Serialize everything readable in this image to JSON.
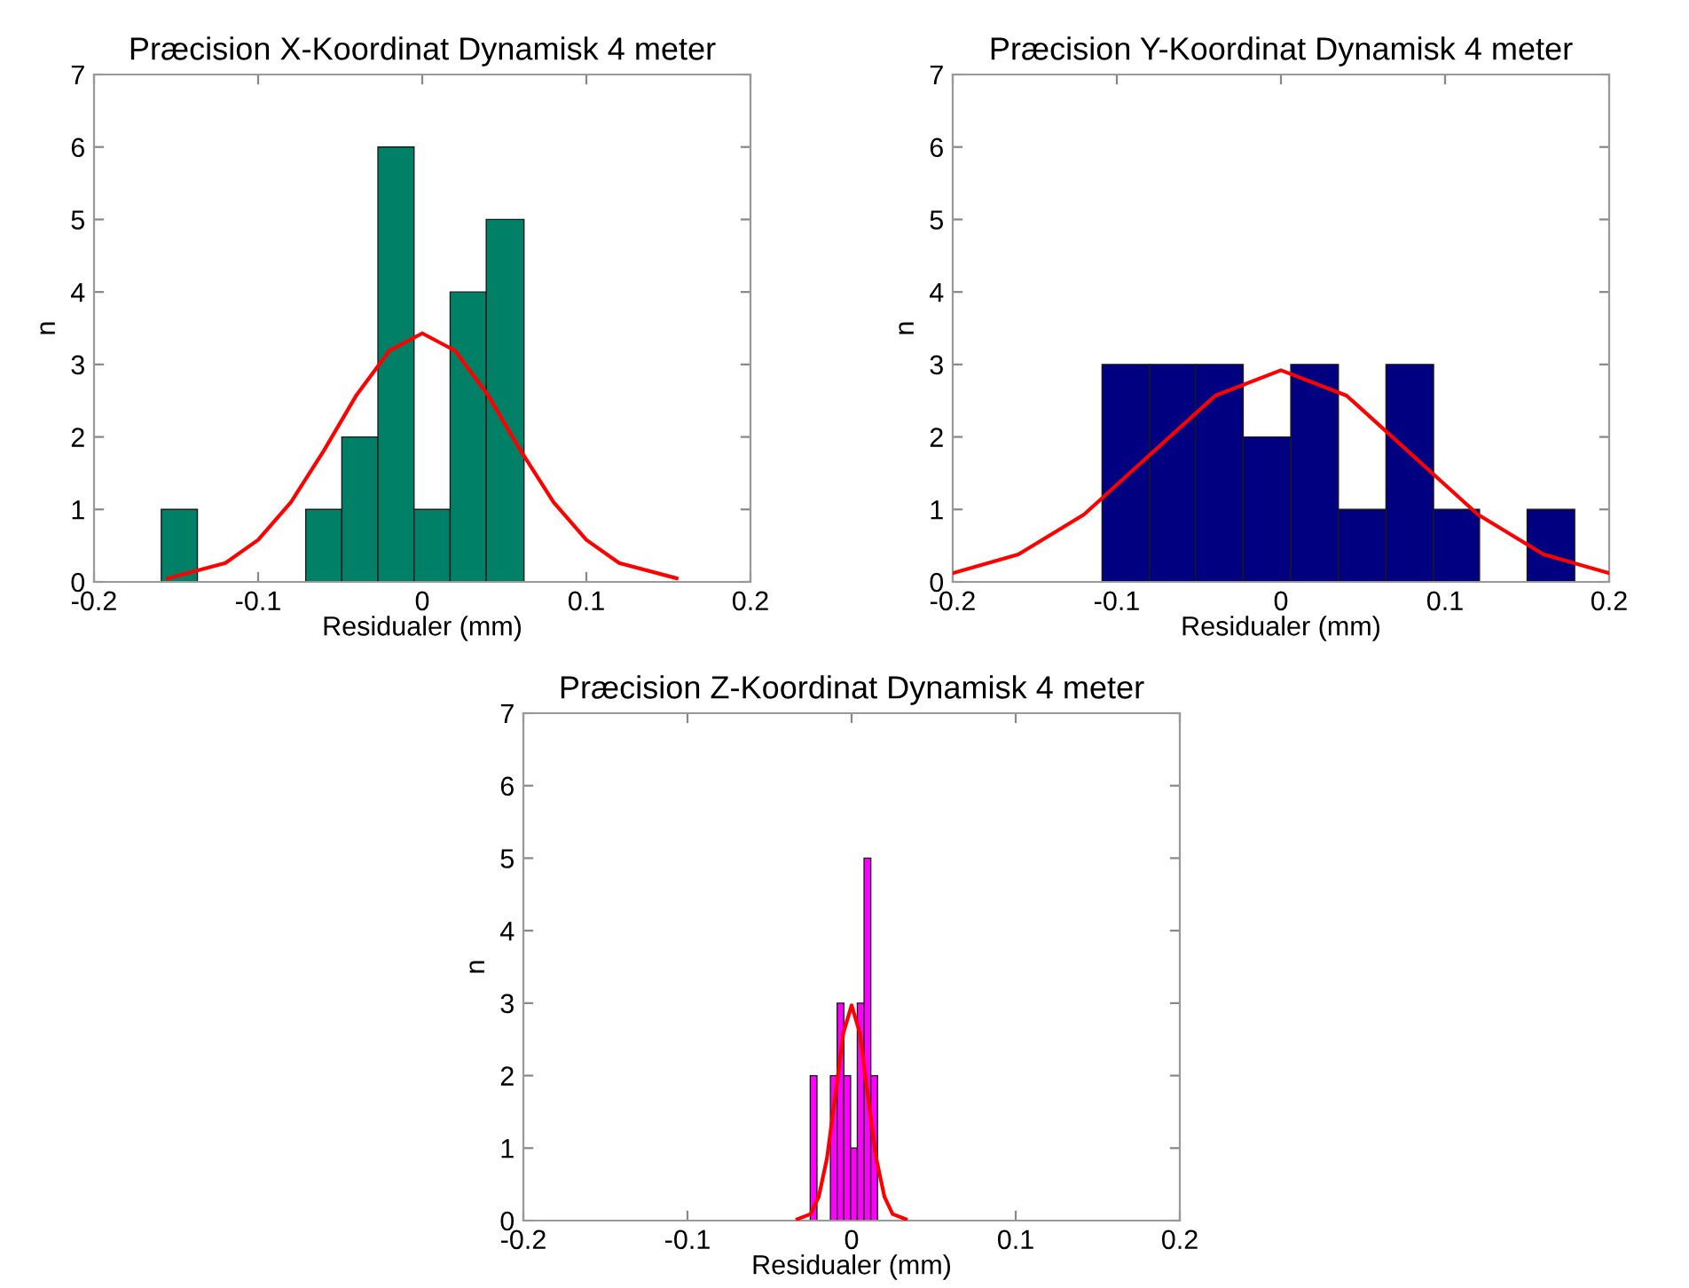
{
  "chart_data": [
    {
      "type": "histogram",
      "title": "Præcision X-Koordinat Dynamisk 4 meter",
      "xlabel": "Residualer (mm)",
      "ylabel": "n",
      "xlim": [
        -0.2,
        0.2
      ],
      "xticks": [
        -0.2,
        -0.1,
        0,
        0.1,
        0.2
      ],
      "ylim": [
        0,
        7
      ],
      "yticks": [
        0,
        1,
        2,
        3,
        4,
        5,
        6,
        7
      ],
      "grid": false,
      "series": [
        {
          "color": "#008066",
          "bins": [
            -0.159,
            -0.137,
            -0.071,
            -0.049,
            -0.027,
            -0.005,
            0.017,
            0.039,
            0.062
          ],
          "values": [
            1,
            0,
            1,
            2,
            6,
            1,
            4,
            5
          ]
        },
        {
          "type": "line",
          "color": "#ff0000",
          "x": [
            -0.155,
            -0.12,
            -0.1,
            -0.08,
            -0.06,
            -0.04,
            -0.02,
            0,
            0.02,
            0.04,
            0.06,
            0.08,
            0.1,
            0.12,
            0.155
          ],
          "values": [
            0.05,
            0.26,
            0.58,
            1.1,
            1.81,
            2.58,
            3.19,
            3.43,
            3.19,
            2.58,
            1.81,
            1.1,
            0.58,
            0.26,
            0.05
          ]
        }
      ]
    },
    {
      "type": "histogram",
      "title": "Præcision Y-Koordinat Dynamisk 4 meter",
      "xlabel": "Residualer (mm)",
      "ylabel": "n",
      "xlim": [
        -0.2,
        0.2
      ],
      "xticks": [
        -0.2,
        -0.1,
        0,
        0.1,
        0.2
      ],
      "ylim": [
        0,
        7
      ],
      "yticks": [
        0,
        1,
        2,
        3,
        4,
        5,
        6,
        7
      ],
      "grid": false,
      "series": [
        {
          "color": "#000080",
          "bins": [
            -0.109,
            -0.08,
            -0.052,
            -0.023,
            0.006,
            0.035,
            0.064,
            0.093,
            0.121,
            0.15,
            0.179
          ],
          "values": [
            3,
            3,
            3,
            2,
            3,
            1,
            3,
            1,
            0,
            1
          ]
        },
        {
          "type": "line",
          "color": "#ff0000",
          "x": [
            -0.2,
            -0.16,
            -0.12,
            -0.08,
            -0.04,
            0,
            0.04,
            0.08,
            0.12,
            0.16,
            0.2
          ],
          "values": [
            0.12,
            0.38,
            0.93,
            1.75,
            2.57,
            2.92,
            2.57,
            1.75,
            0.93,
            0.38,
            0.12
          ]
        }
      ]
    },
    {
      "type": "histogram",
      "title": "Præcision Z-Koordinat Dynamisk 4 meter",
      "xlabel": "Residualer (mm)",
      "ylabel": "n",
      "xlim": [
        -0.2,
        0.2
      ],
      "xticks": [
        -0.2,
        -0.1,
        0,
        0.1,
        0.2
      ],
      "ylim": [
        0,
        7
      ],
      "yticks": [
        0,
        1,
        2,
        3,
        4,
        5,
        6,
        7
      ],
      "grid": false,
      "series": [
        {
          "color": "#ff00ff",
          "bins": [
            -0.0252,
            -0.0211,
            -0.0129,
            -0.0088,
            -0.0047,
            -0.0006,
            0.0035,
            0.0076,
            0.0117,
            0.0158
          ],
          "values": [
            2,
            0,
            2,
            3,
            2,
            1,
            3,
            5,
            2
          ]
        },
        {
          "type": "line",
          "color": "#ff0000",
          "x": [
            -0.033,
            -0.025,
            -0.02,
            -0.015,
            -0.01,
            -0.005,
            0,
            0.005,
            0.01,
            0.015,
            0.02,
            0.025,
            0.033
          ],
          "values": [
            0.02,
            0.09,
            0.33,
            0.86,
            1.71,
            2.59,
            2.97,
            2.59,
            1.71,
            0.86,
            0.33,
            0.09,
            0.02
          ]
        }
      ]
    }
  ]
}
